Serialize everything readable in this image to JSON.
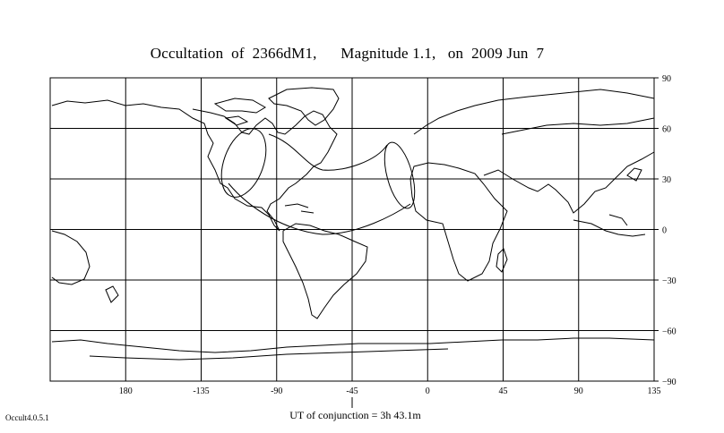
{
  "title": {
    "occultation_label": "Occultation  of  2366dM1,",
    "magnitude_label": "Magnitude 1.1,",
    "date_label": "on  2009 Jun  7",
    "full_text": "Occultation  of  2366dM1,      Magnitude 1.1,   on  2009 Jun  7"
  },
  "map": {
    "projection": "equirectangular",
    "lon_range": [
      -135,
      135
    ],
    "lat_range": [
      -90,
      90
    ],
    "grid": true,
    "lon_ticks": [
      180,
      -135,
      -90,
      -45,
      0,
      45,
      90,
      135
    ],
    "lon_tick_labels": [
      "180",
      "-135",
      "-90",
      "-45",
      "0",
      "45",
      "90",
      "135"
    ],
    "lat_ticks": [
      90,
      60,
      30,
      0,
      -30,
      -60,
      -90
    ],
    "lat_tick_labels": [
      "90",
      "60",
      "30",
      "0",
      "−30",
      "−60",
      "−90"
    ],
    "line_color": "#000000",
    "background": "#ffffff"
  },
  "conjunction": {
    "marker_lon": -45,
    "label": "UT of conjunction =  3h 43.1m"
  },
  "footer": {
    "version": "Occult4.0.5.1"
  }
}
